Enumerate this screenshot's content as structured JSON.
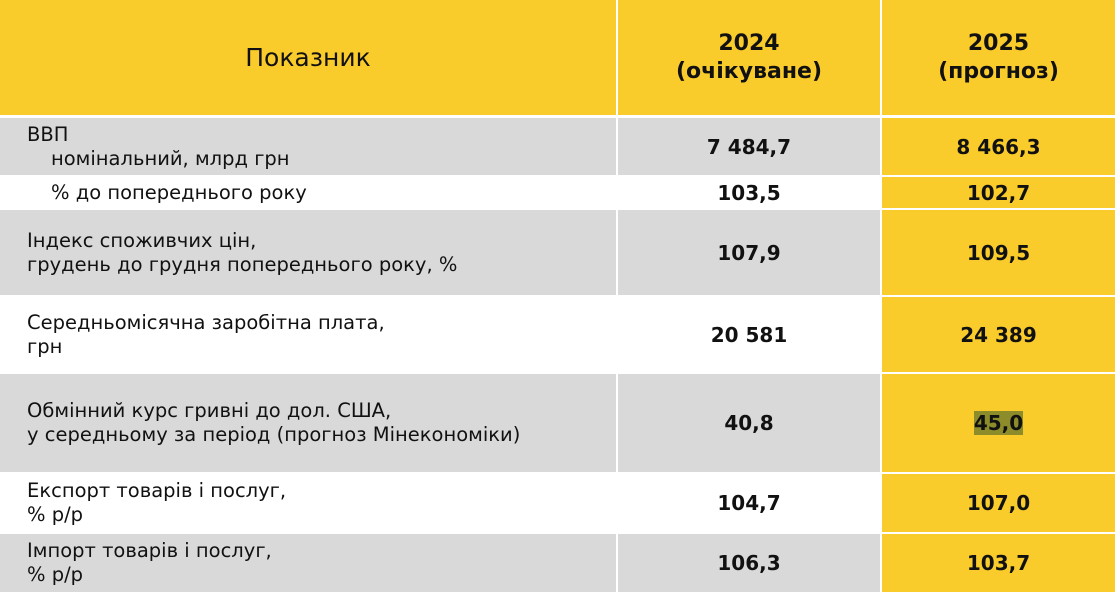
{
  "header": {
    "indicator": "Показник",
    "col2024": [
      "2024",
      "(очікуване)"
    ],
    "col2025": [
      "2025",
      "(прогноз)"
    ]
  },
  "rows": [
    {
      "label": [
        "ВВП",
        "номінальний, млрд грн"
      ],
      "v2024": "7 484,7",
      "v2025": "8 466,3"
    },
    {
      "label": [
        "% до попереднього року"
      ],
      "v2024": "103,5",
      "v2025": "102,7"
    },
    {
      "label": [
        "Індекс споживчих цін,",
        "грудень до грудня попереднього року, %"
      ],
      "v2024": "107,9",
      "v2025": "109,5"
    },
    {
      "label": [
        "Середньомісячна заробітна плата,",
        "грн"
      ],
      "v2024": "20 581",
      "v2025": "24 389"
    },
    {
      "label": [
        "Обмінний курс гривні до дол. США,",
        "у середньому за період (прогноз Мінекономіки)"
      ],
      "v2024": "40,8",
      "v2025": "45,0"
    },
    {
      "label": [
        "Експорт товарів і послуг,",
        "% р/р"
      ],
      "v2024": "104,7",
      "v2025": "107,0"
    },
    {
      "label": [
        "Імпорт товарів і послуг,",
        "% р/р"
      ],
      "v2024": "106,3",
      "v2025": "103,7"
    }
  ],
  "colors": {
    "yellow": "#F9CB2B",
    "gray": "#D9D9D9",
    "highlight": "#8C8C2A"
  }
}
